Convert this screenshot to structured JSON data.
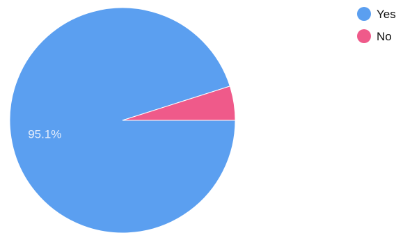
{
  "chart_data": {
    "type": "pie",
    "title": "",
    "slices": [
      {
        "label": "Yes",
        "value": 95.1,
        "color": "#5b9ff0",
        "data_label": "95.1%"
      },
      {
        "label": "No",
        "value": 4.9,
        "color": "#ef5a8a",
        "data_label": ""
      }
    ],
    "start_angle_deg": 0,
    "direction": "counterclockwise-for-second-slice",
    "legend": {
      "position": "top-right",
      "entries": [
        "Yes",
        "No"
      ]
    }
  }
}
